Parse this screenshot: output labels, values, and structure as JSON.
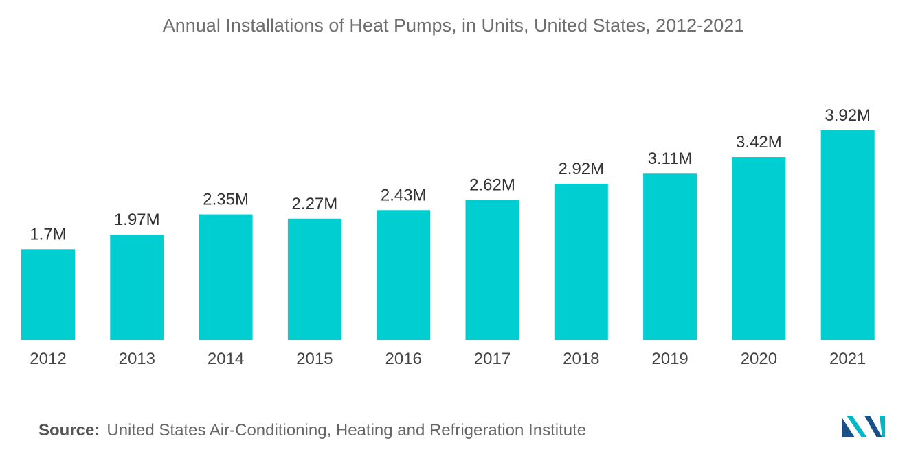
{
  "chart_data": {
    "type": "bar",
    "title": "Annual Installations of Heat Pumps, in Units, United States, 2012-2021",
    "categories": [
      "2012",
      "2013",
      "2014",
      "2015",
      "2016",
      "2017",
      "2018",
      "2019",
      "2020",
      "2021"
    ],
    "values": [
      1.7,
      1.97,
      2.35,
      2.27,
      2.43,
      2.62,
      2.92,
      3.11,
      3.42,
      3.92
    ],
    "value_labels": [
      "1.7M",
      "1.97M",
      "2.35M",
      "2.27M",
      "2.43M",
      "2.62M",
      "2.92M",
      "3.11M",
      "3.42M",
      "3.92M"
    ],
    "xlabel": "",
    "ylabel": "",
    "ylim": [
      0,
      4.1
    ],
    "grid": false,
    "legend": "none",
    "bar_color": "#00ced1"
  },
  "source": {
    "label": "Source:",
    "text": "United States Air-Conditioning, Heating and Refrigeration Institute"
  },
  "logo": {
    "icon": "mordor-logo-icon",
    "colors": [
      "#1a4f8a",
      "#00b8c8"
    ]
  }
}
